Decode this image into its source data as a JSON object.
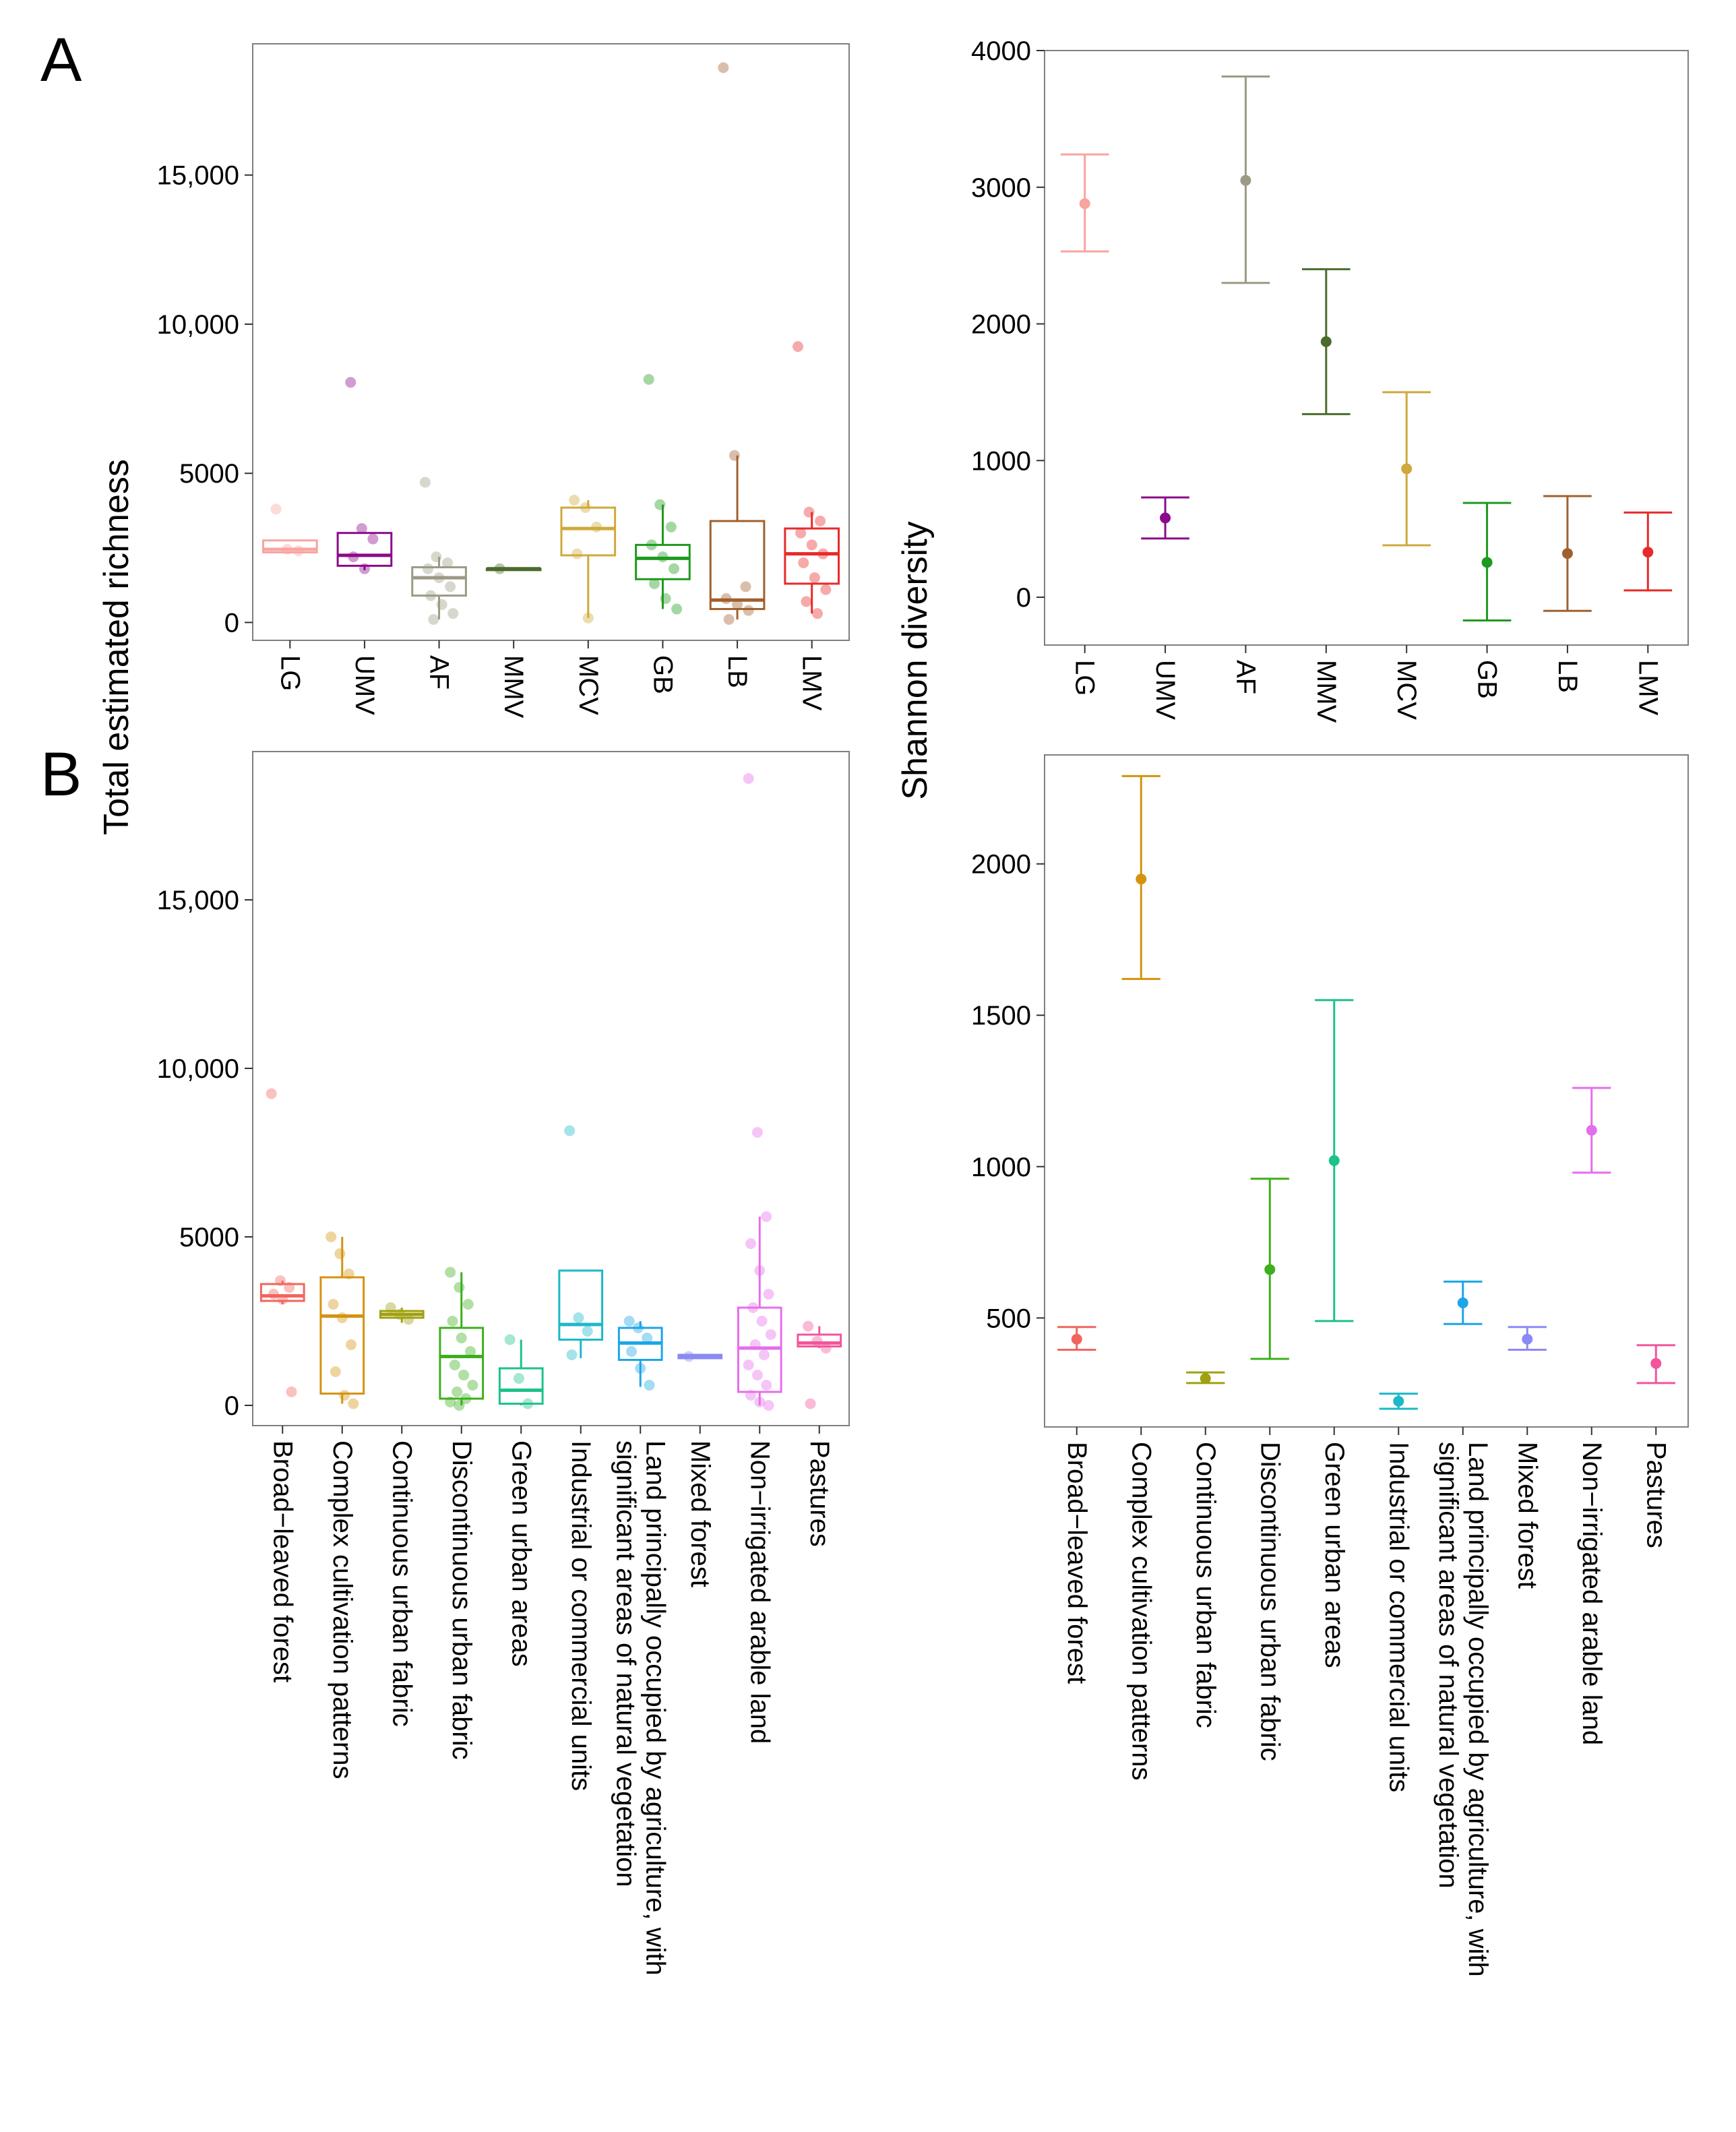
{
  "panel_labels": {
    "a": "A",
    "b": "B"
  },
  "y_titles": {
    "richness": "Total estimated richness",
    "shannon": "Shannon diversity"
  },
  "chart_data": [
    {
      "id": "A-richness",
      "type": "box",
      "panel": "A",
      "ylabel": "Total estimated richness",
      "ylim": [
        -600,
        19400
      ],
      "yticks": [
        0,
        5000,
        10000,
        15000
      ],
      "ytick_labels": [
        "0",
        "5000",
        "10,000",
        "15,000"
      ],
      "categories": [
        "LG",
        "UMV",
        "AF",
        "MMV",
        "MCV",
        "GB",
        "LB",
        "LMV"
      ],
      "colors": [
        "#F8A4A0",
        "#8B0A8B",
        "#9C9A84",
        "#4B6B2A",
        "#CFA93B",
        "#1E9A1E",
        "#A0602E",
        "#E82A2A"
      ],
      "boxes": [
        {
          "q1": 2350,
          "median": 2450,
          "q3": 2750,
          "lo": 2350,
          "hi": 2750,
          "points": [
            3800,
            2450,
            2400
          ]
        },
        {
          "q1": 1900,
          "median": 2250,
          "q3": 3000,
          "lo": 1750,
          "hi": 3000,
          "points": [
            8050,
            3150,
            2800,
            2200,
            1800
          ]
        },
        {
          "q1": 900,
          "median": 1500,
          "q3": 1850,
          "lo": 100,
          "hi": 2200,
          "points": [
            4700,
            2200,
            2000,
            1800,
            1500,
            1200,
            900,
            600,
            300,
            100
          ]
        },
        {
          "q1": 1800,
          "median": 1800,
          "q3": 1800,
          "lo": 1800,
          "hi": 1800,
          "points": [
            1800
          ]
        },
        {
          "q1": 2250,
          "median": 3150,
          "q3": 3850,
          "lo": 150,
          "hi": 4100,
          "points": [
            4100,
            3850,
            3200,
            2300,
            150
          ]
        },
        {
          "q1": 1450,
          "median": 2150,
          "q3": 2600,
          "lo": 450,
          "hi": 3950,
          "points": [
            8150,
            3950,
            3200,
            2600,
            2200,
            1800,
            1300,
            800,
            450
          ]
        },
        {
          "q1": 450,
          "median": 750,
          "q3": 3400,
          "lo": 100,
          "hi": 5600,
          "points": [
            18600,
            5600,
            1200,
            800,
            600,
            400,
            100
          ]
        },
        {
          "q1": 1300,
          "median": 2300,
          "q3": 3150,
          "lo": 300,
          "hi": 3700,
          "points": [
            9250,
            3700,
            3400,
            3000,
            2600,
            2300,
            2000,
            1500,
            1100,
            700,
            300
          ]
        }
      ]
    },
    {
      "id": "A-shannon",
      "type": "errorbar",
      "panel": "A",
      "ylabel": "Shannon diversity",
      "ylim": [
        -350,
        4000
      ],
      "yticks": [
        0,
        1000,
        2000,
        3000,
        4000
      ],
      "ytick_labels": [
        "0",
        "1000",
        "2000",
        "3000",
        "4000"
      ],
      "categories": [
        "LG",
        "UMV",
        "AF",
        "MMV",
        "MCV",
        "GB",
        "LB",
        "LMV"
      ],
      "colors": [
        "#F8A4A0",
        "#8B0A8B",
        "#9C9A84",
        "#4B6B2A",
        "#CFA93B",
        "#1E9A1E",
        "#A0602E",
        "#E82A2A"
      ],
      "means": [
        2880,
        580,
        3050,
        1870,
        940,
        255,
        320,
        330
      ],
      "lower": [
        2530,
        430,
        2300,
        1340,
        380,
        -170,
        -100,
        50
      ],
      "upper": [
        3240,
        730,
        3810,
        2400,
        1500,
        690,
        740,
        620
      ]
    },
    {
      "id": "B-richness",
      "type": "box",
      "panel": "B",
      "ylabel": "Total estimated richness",
      "ylim": [
        -600,
        19400
      ],
      "yticks": [
        0,
        5000,
        10000,
        15000
      ],
      "ytick_labels": [
        "0",
        "5000",
        "10,000",
        "15,000"
      ],
      "categories": [
        "Broad−leaved forest",
        "Complex cultivation patterns",
        "Continuous urban fabric",
        "Discontinuous urban fabric",
        "Green urban areas",
        "Industrial or commercial units",
        "Land principally occupied by agriculture, with significant areas of natural vegetation",
        "Mixed forest",
        "Non−irrigated arable land",
        "Pastures"
      ],
      "colors": [
        "#F0665E",
        "#D4930F",
        "#9FA010",
        "#3DAF1C",
        "#1DC28A",
        "#1CB8C9",
        "#1CA6E6",
        "#8A8AF5",
        "#E56EEC",
        "#F2559A"
      ],
      "boxes": [
        {
          "q1": 3100,
          "median": 3250,
          "q3": 3600,
          "lo": 3000,
          "hi": 3700,
          "points": [
            9250,
            3700,
            3500,
            3300,
            3150,
            400
          ]
        },
        {
          "q1": 350,
          "median": 2650,
          "q3": 3800,
          "lo": 50,
          "hi": 5000,
          "points": [
            5000,
            4500,
            3900,
            3000,
            2600,
            1800,
            1000,
            300,
            50
          ]
        },
        {
          "q1": 2600,
          "median": 2700,
          "q3": 2800,
          "lo": 2450,
          "hi": 2900,
          "points": [
            2900,
            2700,
            2550
          ]
        },
        {
          "q1": 200,
          "median": 1450,
          "q3": 2300,
          "lo": 0,
          "hi": 3950,
          "points": [
            3950,
            3500,
            3000,
            2500,
            2000,
            1600,
            1200,
            900,
            600,
            400,
            200,
            100,
            0
          ]
        },
        {
          "q1": 50,
          "median": 450,
          "q3": 1100,
          "lo": 0,
          "hi": 1950,
          "points": [
            1950,
            800,
            50
          ]
        },
        {
          "q1": 1950,
          "median": 2400,
          "q3": 4000,
          "lo": 1400,
          "hi": 4000,
          "points": [
            8150,
            2600,
            2200,
            1500
          ]
        },
        {
          "q1": 1350,
          "median": 1850,
          "q3": 2300,
          "lo": 550,
          "hi": 2500,
          "points": [
            2500,
            2300,
            2000,
            1600,
            1100,
            600
          ]
        },
        {
          "q1": 1400,
          "median": 1450,
          "q3": 1500,
          "lo": 1400,
          "hi": 1500,
          "points": [
            1450
          ]
        },
        {
          "q1": 400,
          "median": 1700,
          "q3": 2900,
          "lo": 0,
          "hi": 5600,
          "points": [
            18600,
            8100,
            5600,
            4800,
            4000,
            3300,
            2900,
            2500,
            2100,
            1800,
            1500,
            1200,
            900,
            600,
            300,
            100,
            0
          ]
        },
        {
          "q1": 1750,
          "median": 1850,
          "q3": 2100,
          "lo": 1700,
          "hi": 2350,
          "points": [
            2350,
            1900,
            1700,
            50
          ]
        }
      ]
    },
    {
      "id": "B-shannon",
      "type": "errorbar",
      "panel": "B",
      "ylabel": "Shannon diversity",
      "ylim": [
        140,
        2360
      ],
      "yticks": [
        500,
        1000,
        1500,
        2000
      ],
      "ytick_labels": [
        "500",
        "1000",
        "1500",
        "2000"
      ],
      "categories": [
        "Broad−leaved forest",
        "Complex cultivation patterns",
        "Continuous urban fabric",
        "Discontinuous urban fabric",
        "Green urban areas",
        "Industrial or commercial units",
        "Land principally occupied by agriculture, with significant areas of natural vegetation",
        "Mixed forest",
        "Non−irrigated arable land",
        "Pastures"
      ],
      "colors": [
        "#F0665E",
        "#D4930F",
        "#9FA010",
        "#3DAF1C",
        "#1DC28A",
        "#1CB8C9",
        "#1CA6E6",
        "#8A8AF5",
        "#E56EEC",
        "#F2559A"
      ],
      "means": [
        430,
        1950,
        300,
        660,
        1020,
        225,
        550,
        430,
        1120,
        350
      ],
      "lower": [
        395,
        1620,
        285,
        365,
        490,
        200,
        480,
        395,
        980,
        285
      ],
      "upper": [
        470,
        2290,
        320,
        960,
        1550,
        250,
        620,
        470,
        1260,
        410
      ]
    }
  ]
}
